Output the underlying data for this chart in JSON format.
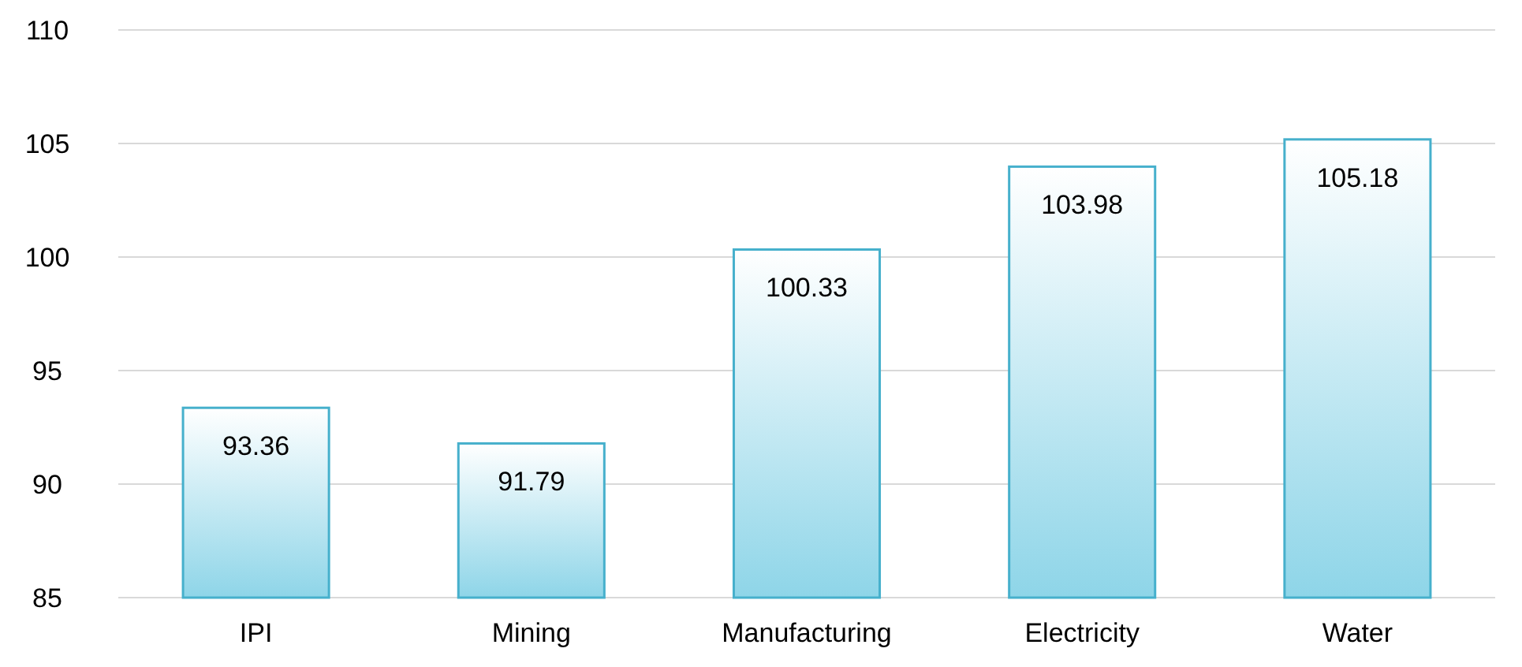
{
  "chart_data": {
    "type": "bar",
    "categories": [
      "IPI",
      "Mining",
      "Manufacturing",
      "Electricity",
      "Water"
    ],
    "values": [
      93.36,
      91.79,
      100.33,
      103.98,
      105.18
    ],
    "color": "#46b0cc",
    "ylim": [
      85,
      110
    ],
    "yticks": [
      85,
      90,
      95,
      100,
      105,
      110
    ],
    "grid": "y",
    "data_labels": true
  }
}
